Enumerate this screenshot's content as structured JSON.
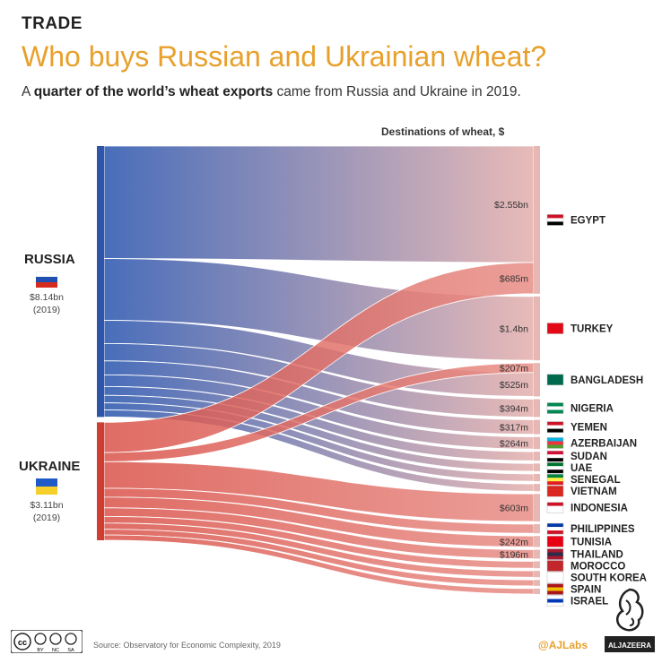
{
  "header": {
    "kicker": "TRADE",
    "title": "Who buys Russian and Ukrainian wheat?",
    "subtitle_prefix": "A ",
    "subtitle_bold": "quarter of the world’s wheat exports",
    "subtitle_suffix": " came from Russia and Ukraine in 2019."
  },
  "footer": {
    "source": "Source: Observatory for Economic Complexity, 2019",
    "handle": "@AJLabs",
    "logo_text": "ALJAZEERA",
    "license_labels": [
      "BY",
      "NC",
      "SA"
    ]
  },
  "chart_data": {
    "type": "sankey",
    "heading": "Destinations of wheat, $",
    "colors": {
      "russia": "#3f66b6",
      "ukraine": "#d9534a",
      "pink": "#e7b7b4",
      "accent": "#e8a02c"
    },
    "sources": [
      {
        "id": "russia",
        "name": "RUSSIA",
        "total": "$8.14bn",
        "year": "(2019)",
        "value": 8.14
      },
      {
        "id": "ukraine",
        "name": "UKRAINE",
        "total": "$3.11bn",
        "year": "(2019)",
        "value": 3.11
      }
    ],
    "destinations": [
      "EGYPT",
      "TURKEY",
      "BANGLADESH",
      "NIGERIA",
      "YEMEN",
      "AZERBAIJAN",
      "SUDAN",
      "UAE",
      "SENEGAL",
      "VIETNAM",
      "INDONESIA",
      "PHILIPPINES",
      "TUNISIA",
      "THAILAND",
      "MOROCCO",
      "SOUTH KOREA",
      "SPAIN",
      "ISRAEL"
    ],
    "flows": [
      {
        "source": "russia",
        "dest": "EGYPT",
        "value": 2.55,
        "label": "$2.55bn"
      },
      {
        "source": "ukraine",
        "dest": "EGYPT",
        "value": 0.685,
        "label": "$685m"
      },
      {
        "source": "russia",
        "dest": "TURKEY",
        "value": 1.4,
        "label": "$1.4bn"
      },
      {
        "source": "ukraine",
        "dest": "BANGLADESH",
        "value": 0.207,
        "label": "$207m"
      },
      {
        "source": "russia",
        "dest": "BANGLADESH",
        "value": 0.525,
        "label": "$525m"
      },
      {
        "source": "russia",
        "dest": "NIGERIA",
        "value": 0.394,
        "label": "$394m"
      },
      {
        "source": "russia",
        "dest": "YEMEN",
        "value": 0.317,
        "label": "$317m"
      },
      {
        "source": "russia",
        "dest": "AZERBAIJAN",
        "value": 0.264,
        "label": "$264m"
      },
      {
        "source": "russia",
        "dest": "SUDAN",
        "value": 0.2,
        "label": ""
      },
      {
        "source": "russia",
        "dest": "UAE",
        "value": 0.17,
        "label": ""
      },
      {
        "source": "russia",
        "dest": "SENEGAL",
        "value": 0.16,
        "label": ""
      },
      {
        "source": "russia",
        "dest": "VIETNAM",
        "value": 0.16,
        "label": ""
      },
      {
        "source": "ukraine",
        "dest": "INDONESIA",
        "value": 0.603,
        "label": "$603m"
      },
      {
        "source": "ukraine",
        "dest": "PHILIPPINES",
        "value": 0.2,
        "label": ""
      },
      {
        "source": "ukraine",
        "dest": "TUNISIA",
        "value": 0.242,
        "label": "$242m"
      },
      {
        "source": "ukraine",
        "dest": "THAILAND",
        "value": 0.196,
        "label": "$196m"
      },
      {
        "source": "ukraine",
        "dest": "MOROCCO",
        "value": 0.15,
        "label": ""
      },
      {
        "source": "ukraine",
        "dest": "SOUTH KOREA",
        "value": 0.14,
        "label": ""
      },
      {
        "source": "ukraine",
        "dest": "SPAIN",
        "value": 0.13,
        "label": ""
      },
      {
        "source": "ukraine",
        "dest": "ISRAEL",
        "value": 0.12,
        "label": ""
      }
    ]
  }
}
